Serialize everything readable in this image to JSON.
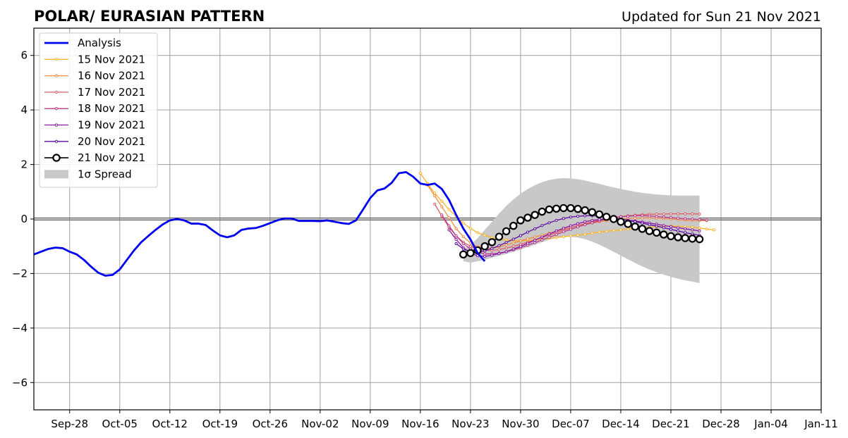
{
  "chart_data": {
    "type": "line",
    "title": "POLAR/ EURASIAN  PATTERN",
    "subtitle": "Updated for Sun 21 Nov 2021",
    "xlabel": "",
    "ylabel": "",
    "ylim": [
      -7,
      7
    ],
    "xlim": [
      "2021-09-23",
      "2022-01-11"
    ],
    "grid": true,
    "legend_position": "top-left",
    "xticks": [
      "Sep-28",
      "Oct-05",
      "Oct-12",
      "Oct-19",
      "Oct-26",
      "Nov-02",
      "Nov-09",
      "Nov-16",
      "Nov-23",
      "Nov-30",
      "Dec-07",
      "Dec-14",
      "Dec-21",
      "Dec-28",
      "Jan-04",
      "Jan-11"
    ],
    "xtick_dates": [
      "2021-09-28",
      "2021-10-05",
      "2021-10-12",
      "2021-10-19",
      "2021-10-26",
      "2021-11-02",
      "2021-11-09",
      "2021-11-16",
      "2021-11-23",
      "2021-11-30",
      "2021-12-07",
      "2021-12-14",
      "2021-12-21",
      "2021-12-28",
      "2022-01-04",
      "2022-01-11"
    ],
    "yticks": [
      "6",
      "4",
      "2",
      "0",
      "−2",
      "−4",
      "−6"
    ],
    "ytick_values": [
      6,
      4,
      2,
      0,
      -2,
      -4,
      -6
    ],
    "analysis": {
      "name": "Analysis",
      "color": "#0000ee",
      "start_date": "2021-09-23",
      "values": [
        -1.3,
        -1.2,
        -1.1,
        -1.05,
        -1.07,
        -1.2,
        -1.3,
        -1.5,
        -1.75,
        -1.97,
        -2.08,
        -2.05,
        -1.85,
        -1.5,
        -1.15,
        -0.85,
        -0.62,
        -0.4,
        -0.2,
        -0.05,
        0.0,
        -0.05,
        -0.17,
        -0.17,
        -0.22,
        -0.42,
        -0.6,
        -0.67,
        -0.6,
        -0.4,
        -0.35,
        -0.33,
        -0.25,
        -0.15,
        -0.05,
        0.02,
        0.02,
        -0.07,
        -0.07,
        -0.07,
        -0.08,
        -0.05,
        -0.1,
        -0.15,
        -0.18,
        -0.05,
        0.35,
        0.77,
        1.05,
        1.12,
        1.33,
        1.68,
        1.72,
        1.55,
        1.3,
        1.25,
        1.3,
        1.1,
        0.7,
        0.15,
        -0.35,
        -0.75,
        -1.25,
        -1.55
      ]
    },
    "forecasts": [
      {
        "name": "15 Nov 2021",
        "color": "#f9b52a",
        "start_date": "2021-11-16",
        "values": [
          1.68,
          1.3,
          0.95,
          0.65,
          0.35,
          0.1,
          -0.15,
          -0.35,
          -0.5,
          -0.6,
          -0.68,
          -0.74,
          -0.77,
          -0.79,
          -0.8,
          -0.79,
          -0.77,
          -0.74,
          -0.71,
          -0.68,
          -0.65,
          -0.62,
          -0.59,
          -0.56,
          -0.52,
          -0.48,
          -0.45,
          -0.42,
          -0.4,
          -0.37,
          -0.35,
          -0.32,
          -0.3,
          -0.28,
          -0.27,
          -0.26,
          -0.27,
          -0.28,
          -0.3,
          -0.33,
          -0.37,
          -0.4
        ]
      },
      {
        "name": "16 Nov 2021",
        "color": "#ef8a47",
        "start_date": "2021-11-17",
        "values": [
          1.25,
          0.85,
          0.45,
          0.05,
          -0.35,
          -0.65,
          -0.88,
          -1.02,
          -1.08,
          -1.07,
          -1.02,
          -0.95,
          -0.88,
          -0.8,
          -0.73,
          -0.66,
          -0.59,
          -0.52,
          -0.45,
          -0.38,
          -0.31,
          -0.25,
          -0.2,
          -0.15,
          -0.1,
          -0.06,
          -0.03,
          0.0,
          0.02,
          0.03,
          0.04,
          0.04,
          0.03,
          0.02,
          0.0,
          -0.02,
          -0.04,
          -0.05,
          -0.06,
          -0.06
        ]
      },
      {
        "name": "17 Nov 2021",
        "color": "#dc5d67",
        "start_date": "2021-11-18",
        "values": [
          0.55,
          0.1,
          -0.3,
          -0.62,
          -0.85,
          -1.0,
          -1.1,
          -1.15,
          -1.15,
          -1.12,
          -1.07,
          -1.0,
          -0.93,
          -0.85,
          -0.77,
          -0.68,
          -0.59,
          -0.5,
          -0.41,
          -0.32,
          -0.24,
          -0.17,
          -0.1,
          -0.04,
          0.0,
          0.05,
          0.09,
          0.12,
          0.14,
          0.16,
          0.17,
          0.18,
          0.18,
          0.19,
          0.19,
          0.19,
          0.19,
          0.18
        ]
      },
      {
        "name": "18 Nov 2021",
        "color": "#b83a8a",
        "start_date": "2021-11-19",
        "values": [
          0.15,
          -0.25,
          -0.62,
          -0.9,
          -1.1,
          -1.22,
          -1.28,
          -1.28,
          -1.25,
          -1.2,
          -1.13,
          -1.05,
          -0.96,
          -0.87,
          -0.77,
          -0.67,
          -0.57,
          -0.47,
          -0.38,
          -0.29,
          -0.21,
          -0.14,
          -0.07,
          -0.01,
          0.04,
          0.08,
          0.1,
          0.12,
          0.12,
          0.11,
          0.09,
          0.07,
          0.05,
          0.03,
          0.01,
          0.0,
          -0.02,
          -0.04
        ]
      },
      {
        "name": "19 Nov 2021",
        "color": "#8a16a3",
        "start_date": "2021-11-20",
        "values": [
          -0.4,
          -0.75,
          -1.05,
          -1.25,
          -1.35,
          -1.37,
          -1.33,
          -1.27,
          -1.2,
          -1.1,
          -1.0,
          -0.89,
          -0.78,
          -0.66,
          -0.55,
          -0.44,
          -0.34,
          -0.25,
          -0.17,
          -0.1,
          -0.05,
          -0.02,
          0.0,
          0.0,
          -0.01,
          -0.04,
          -0.07,
          -0.11,
          -0.15,
          -0.19,
          -0.24,
          -0.28,
          -0.32,
          -0.36,
          -0.4,
          -0.44
        ]
      },
      {
        "name": "20 Nov 2021",
        "color": "#5b0a9e",
        "start_date": "2021-11-21",
        "values": [
          -0.9,
          -1.1,
          -1.2,
          -1.22,
          -1.17,
          -1.08,
          -0.98,
          -0.86,
          -0.74,
          -0.61,
          -0.48,
          -0.36,
          -0.24,
          -0.14,
          -0.05,
          0.02,
          0.07,
          0.1,
          0.12,
          0.12,
          0.11,
          0.08,
          0.04,
          0.0,
          -0.05,
          -0.1,
          -0.15,
          -0.21,
          -0.26,
          -0.32,
          -0.38,
          -0.44,
          -0.5,
          -0.55,
          -0.6
        ]
      },
      {
        "name": "21 Nov 2021",
        "color": "#000000",
        "start_date": "2021-11-22",
        "values": [
          -1.3,
          -1.25,
          -1.15,
          -1.0,
          -0.85,
          -0.65,
          -0.45,
          -0.25,
          -0.05,
          0.05,
          0.15,
          0.27,
          0.35,
          0.38,
          0.4,
          0.4,
          0.37,
          0.32,
          0.25,
          0.17,
          0.08,
          0.0,
          -0.1,
          -0.18,
          -0.28,
          -0.36,
          -0.44,
          -0.5,
          -0.57,
          -0.63,
          -0.67,
          -0.7,
          -0.72,
          -0.74
        ]
      }
    ],
    "spread": {
      "name": "1σ Spread",
      "color": "#c8c8c8",
      "start_date": "2021-11-22",
      "upper": [
        -1.1,
        -0.95,
        -0.7,
        -0.4,
        -0.1,
        0.2,
        0.48,
        0.72,
        0.93,
        1.1,
        1.24,
        1.35,
        1.43,
        1.48,
        1.5,
        1.49,
        1.46,
        1.41,
        1.35,
        1.29,
        1.22,
        1.16,
        1.1,
        1.05,
        1.0,
        0.96,
        0.93,
        0.9,
        0.88,
        0.87,
        0.86,
        0.86,
        0.86,
        0.86
      ],
      "lower": [
        -1.55,
        -1.6,
        -1.55,
        -1.5,
        -1.42,
        -1.35,
        -1.28,
        -1.2,
        -1.12,
        -1.03,
        -0.94,
        -0.85,
        -0.76,
        -0.69,
        -0.65,
        -0.65,
        -0.68,
        -0.74,
        -0.83,
        -0.94,
        -1.07,
        -1.2,
        -1.34,
        -1.48,
        -1.61,
        -1.74,
        -1.85,
        -1.95,
        -2.04,
        -2.12,
        -2.19,
        -2.25,
        -2.3,
        -2.35
      ]
    }
  }
}
